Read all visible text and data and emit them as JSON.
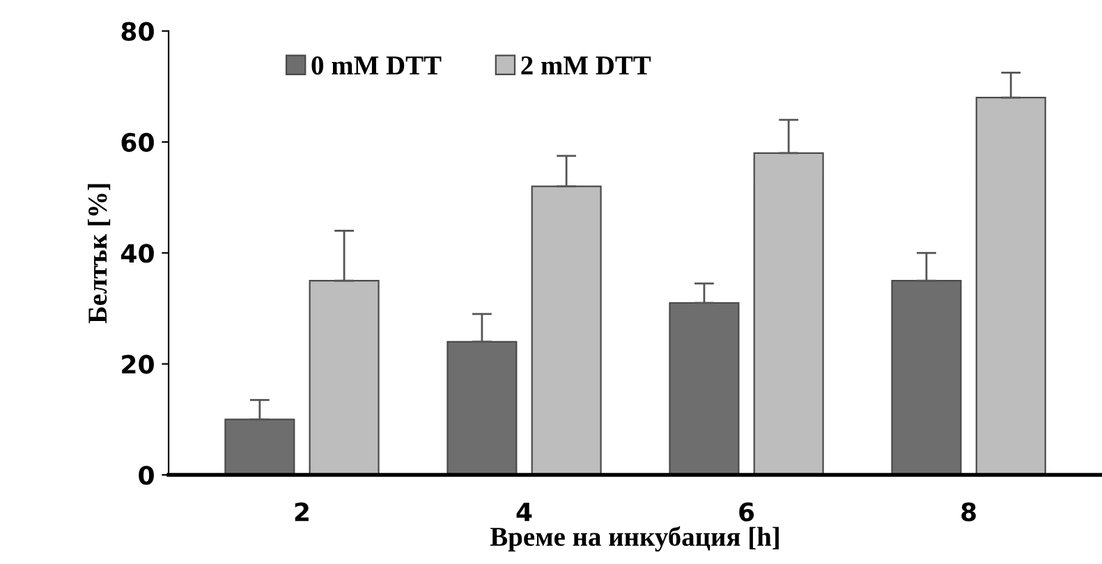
{
  "chart_data": {
    "type": "bar",
    "xlabel": "Време на инкубация [h]",
    "ylabel": "Белтък [%]",
    "categories": [
      "2",
      "4",
      "6",
      "8"
    ],
    "series": [
      {
        "name": "0 mM DTT",
        "color": "#6e6e6e",
        "values": [
          10,
          24,
          31,
          35
        ],
        "errors": [
          3.5,
          5,
          3.5,
          5
        ]
      },
      {
        "name": "2 mM DTT",
        "color": "#bdbdbd",
        "values": [
          35,
          52,
          58,
          68
        ],
        "errors": [
          9,
          5.5,
          6,
          4.5
        ]
      }
    ],
    "ylim": [
      0,
      80
    ],
    "yticks": [
      0,
      20,
      40,
      60,
      80
    ],
    "legend": "top left",
    "grid": false
  }
}
